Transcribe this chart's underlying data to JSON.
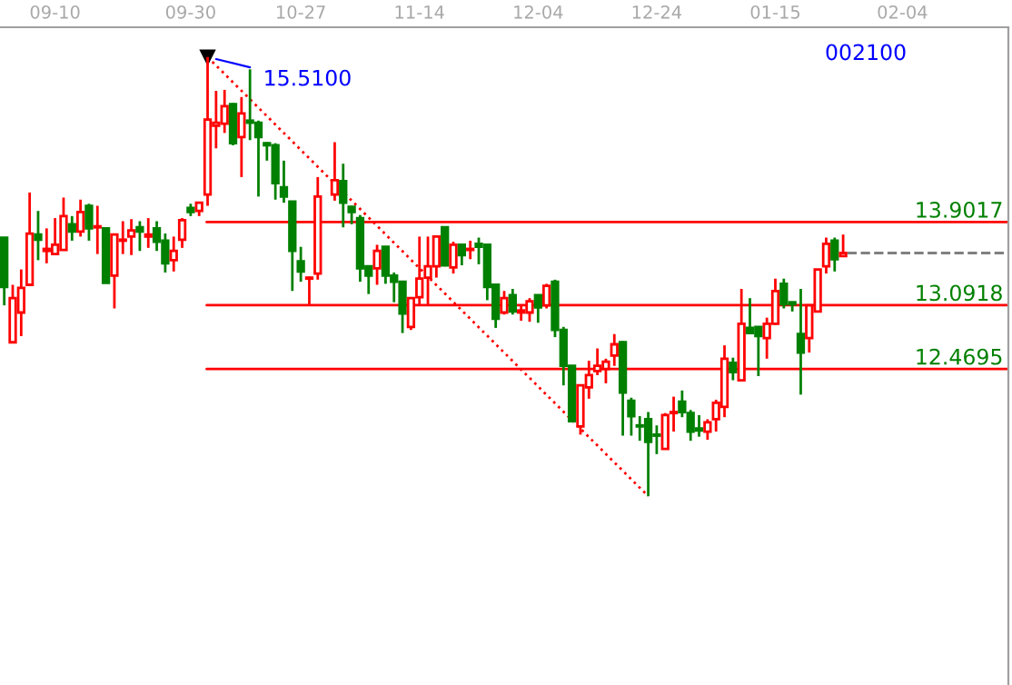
{
  "chart_data": {
    "type": "candlestick",
    "categories": [
      null,
      null,
      null,
      null,
      null,
      null,
      "09-10",
      null,
      null,
      null,
      null,
      null,
      null,
      null,
      null,
      null,
      null,
      null,
      null,
      null,
      null,
      null,
      "09-30",
      null,
      null,
      null,
      null,
      null,
      null,
      null,
      null,
      null,
      null,
      null,
      null,
      "10-27",
      null,
      null,
      null,
      null,
      null,
      null,
      null,
      null,
      null,
      null,
      null,
      null,
      null,
      "11-14",
      null,
      null,
      null,
      null,
      null,
      null,
      null,
      null,
      null,
      null,
      null,
      null,
      null,
      "12-04",
      null,
      null,
      null,
      null,
      null,
      null,
      null,
      null,
      null,
      null,
      null,
      null,
      null,
      "12-24",
      null,
      null,
      null,
      null,
      null,
      null,
      null,
      null,
      null,
      null,
      null,
      null,
      null,
      "01-15",
      null,
      null,
      null,
      null,
      null,
      null,
      null,
      null,
      null,
      null,
      null,
      null,
      null,
      null,
      "02-04",
      null,
      null,
      null,
      null,
      null,
      null,
      null,
      null,
      null,
      null,
      null,
      null
    ],
    "ohlc": [
      [
        13.75,
        13.75,
        13.09,
        13.27
      ],
      [
        12.73,
        13.29,
        12.73,
        13.16
      ],
      [
        13.02,
        13.44,
        12.79,
        13.26
      ],
      [
        13.29,
        14.19,
        13.29,
        13.79
      ],
      [
        13.78,
        14.01,
        13.53,
        13.73
      ],
      [
        13.62,
        13.84,
        13.5,
        13.64
      ],
      [
        13.59,
        13.94,
        13.59,
        13.68
      ],
      [
        13.63,
        14.14,
        13.63,
        13.96
      ],
      [
        13.88,
        13.96,
        13.72,
        13.81
      ],
      [
        13.81,
        14.12,
        13.76,
        14.0
      ],
      [
        14.06,
        14.08,
        13.72,
        13.84
      ],
      [
        13.85,
        14.06,
        13.59,
        13.86
      ],
      [
        13.84,
        13.84,
        13.31,
        13.31
      ],
      [
        13.38,
        13.79,
        13.06,
        13.78
      ],
      [
        13.72,
        13.91,
        13.59,
        13.73
      ],
      [
        13.76,
        13.93,
        13.58,
        13.82
      ],
      [
        13.85,
        13.91,
        13.62,
        13.81
      ],
      [
        13.76,
        13.94,
        13.65,
        13.78
      ],
      [
        13.84,
        13.91,
        13.62,
        13.71
      ],
      [
        13.72,
        13.79,
        13.41,
        13.5
      ],
      [
        13.53,
        13.76,
        13.42,
        13.62
      ],
      [
        13.73,
        13.94,
        13.65,
        13.92
      ],
      [
        14.04,
        14.08,
        13.96,
        14.0
      ],
      [
        14.01,
        14.1,
        13.96,
        14.09
      ],
      [
        14.17,
        15.51,
        14.06,
        14.9
      ],
      [
        14.84,
        15.18,
        14.62,
        14.87
      ],
      [
        14.86,
        15.19,
        14.77,
        15.03
      ],
      [
        15.05,
        15.06,
        14.65,
        14.67
      ],
      [
        14.73,
        15.12,
        14.34,
        14.96
      ],
      [
        14.89,
        15.39,
        14.7,
        14.87
      ],
      [
        14.87,
        14.89,
        14.15,
        14.73
      ],
      [
        14.67,
        14.68,
        14.5,
        14.65
      ],
      [
        14.65,
        14.67,
        14.12,
        14.28
      ],
      [
        14.24,
        14.5,
        14.09,
        14.15
      ],
      [
        14.1,
        14.1,
        13.23,
        13.62
      ],
      [
        13.52,
        13.66,
        13.32,
        13.42
      ],
      [
        13.35,
        13.37,
        13.1,
        13.36
      ],
      [
        13.4,
        14.34,
        13.34,
        14.15
      ],
      null,
      [
        14.17,
        14.68,
        14.11,
        14.31
      ],
      [
        14.3,
        14.47,
        13.85,
        14.09
      ],
      [
        14.05,
        14.06,
        13.88,
        14.0
      ],
      [
        13.94,
        13.97,
        13.32,
        13.45
      ],
      [
        13.47,
        13.48,
        13.2,
        13.38
      ],
      [
        13.45,
        13.68,
        13.29,
        13.62
      ],
      [
        13.66,
        13.66,
        13.3,
        13.38
      ],
      [
        13.38,
        13.41,
        13.12,
        13.32
      ],
      [
        13.32,
        13.32,
        12.82,
        13.01
      ],
      [
        12.88,
        13.17,
        12.85,
        13.16
      ],
      [
        13.17,
        13.76,
        13.09,
        13.35
      ],
      [
        13.36,
        13.76,
        13.09,
        13.47
      ],
      [
        13.47,
        13.76,
        13.36,
        13.76
      ],
      [
        13.85,
        13.85,
        13.47,
        13.48
      ],
      [
        13.46,
        13.71,
        13.4,
        13.68
      ],
      [
        13.68,
        13.68,
        13.48,
        13.58
      ],
      [
        13.63,
        13.72,
        13.54,
        13.64
      ],
      [
        13.69,
        13.75,
        13.49,
        13.66
      ],
      [
        13.68,
        13.68,
        13.14,
        13.27
      ],
      [
        13.29,
        13.29,
        12.87,
        12.96
      ],
      [
        13.02,
        13.23,
        13.0,
        13.16
      ],
      [
        13.19,
        13.25,
        13.0,
        13.03
      ],
      [
        13.02,
        13.09,
        12.94,
        13.04
      ],
      [
        13.02,
        13.16,
        12.93,
        13.13
      ],
      [
        13.19,
        13.19,
        12.92,
        13.07
      ],
      [
        13.09,
        13.3,
        13.06,
        13.28
      ],
      [
        13.32,
        13.34,
        12.78,
        12.85
      ],
      [
        12.85,
        12.88,
        12.31,
        12.5
      ],
      [
        12.5,
        12.5,
        11.95,
        11.96
      ],
      [
        11.91,
        12.31,
        11.83,
        12.31
      ],
      [
        12.29,
        12.55,
        12.18,
        12.41
      ],
      [
        12.45,
        12.67,
        12.41,
        12.5
      ],
      [
        12.47,
        12.57,
        12.33,
        12.54
      ],
      [
        12.6,
        12.81,
        12.5,
        12.71
      ],
      [
        12.73,
        12.74,
        11.82,
        12.24
      ],
      [
        12.16,
        12.19,
        11.82,
        12.01
      ],
      [
        11.92,
        12.01,
        11.77,
        11.91
      ],
      [
        11.98,
        12.05,
        11.23,
        11.76
      ],
      [
        11.83,
        11.92,
        11.64,
        11.82
      ],
      [
        11.69,
        12.04,
        11.69,
        12.02
      ],
      [
        12.04,
        12.2,
        11.86,
        12.05
      ],
      [
        12.15,
        12.26,
        12.0,
        12.05
      ],
      [
        12.04,
        12.07,
        11.77,
        11.86
      ],
      [
        11.89,
        12.02,
        11.81,
        11.87
      ],
      [
        11.86,
        11.98,
        11.78,
        11.95
      ],
      [
        11.98,
        12.17,
        11.86,
        12.14
      ],
      [
        12.1,
        12.7,
        12.0,
        12.57
      ],
      [
        12.53,
        12.58,
        12.36,
        12.44
      ],
      [
        12.36,
        13.25,
        12.35,
        12.91
      ],
      [
        12.87,
        13.16,
        12.81,
        12.82
      ],
      [
        12.88,
        12.88,
        12.4,
        12.79
      ],
      [
        12.77,
        12.97,
        12.57,
        12.91
      ],
      [
        12.91,
        13.35,
        12.9,
        13.23
      ],
      [
        13.3,
        13.35,
        13.06,
        13.1
      ],
      [
        13.12,
        13.12,
        13.03,
        13.1
      ],
      [
        12.81,
        13.25,
        12.22,
        12.63
      ],
      [
        12.77,
        13.09,
        12.63,
        13.09
      ],
      [
        13.03,
        13.44,
        13.03,
        13.44
      ],
      [
        13.47,
        13.75,
        13.4,
        13.69
      ],
      [
        13.72,
        13.75,
        13.42,
        13.54
      ],
      [
        13.57,
        13.78,
        13.56,
        13.6
      ],
      null,
      null,
      null,
      null,
      null,
      null,
      null,
      null,
      null,
      null,
      null,
      null,
      null,
      null,
      null,
      null,
      null,
      null,
      null
    ],
    "colors": [
      "#008000",
      "#ff0000",
      "#ff0000",
      "#ff0000",
      "#008000",
      "#ff0000",
      "#ff0000",
      "#ff0000",
      "#008000",
      "#ff0000",
      "#008000",
      "#ff0000",
      "#008000",
      "#ff0000",
      "#ff0000",
      "#ff0000",
      "#008000",
      "#ff0000",
      "#008000",
      "#008000",
      "#ff0000",
      "#ff0000",
      "#008000",
      "#ff0000",
      "#ff0000",
      "#ff0000",
      "#ff0000",
      "#008000",
      "#ff0000",
      "#008000",
      "#008000",
      "#008000",
      "#008000",
      "#008000",
      "#008000",
      "#008000",
      "#ff0000",
      "#ff0000",
      null,
      "#ff0000",
      "#008000",
      "#008000",
      "#008000",
      "#008000",
      "#ff0000",
      "#008000",
      "#008000",
      "#008000",
      "#ff0000",
      "#ff0000",
      "#ff0000",
      "#ff0000",
      "#008000",
      "#ff0000",
      "#008000",
      "#ff0000",
      "#008000",
      "#008000",
      "#008000",
      "#ff0000",
      "#008000",
      "#ff0000",
      "#ff0000",
      "#008000",
      "#ff0000",
      "#008000",
      "#008000",
      "#008000",
      "#ff0000",
      "#ff0000",
      "#ff0000",
      "#ff0000",
      "#ff0000",
      "#008000",
      "#008000",
      "#008000",
      "#008000",
      "#008000",
      "#ff0000",
      "#ff0000",
      "#008000",
      "#008000",
      "#008000",
      "#ff0000",
      "#ff0000",
      "#ff0000",
      "#008000",
      "#ff0000",
      "#008000",
      "#008000",
      "#ff0000",
      "#ff0000",
      "#008000",
      "#008000",
      "#008000",
      "#ff0000",
      "#ff0000",
      "#ff0000",
      "#008000",
      "#ff0000",
      null,
      null,
      null,
      null,
      null,
      null,
      null,
      null,
      null,
      null,
      null,
      null,
      null,
      null,
      null,
      null,
      null,
      null,
      null
    ],
    "series": [
      {
        "type": "line",
        "color": "#ff0000",
        "line_style": "dotted",
        "values": [
          null,
          null,
          null,
          null,
          null,
          null,
          null,
          null,
          null,
          null,
          null,
          null,
          null,
          null,
          null,
          null,
          null,
          null,
          null,
          null,
          null,
          null,
          null,
          null,
          15.51,
          null,
          null,
          null,
          null,
          null,
          null,
          null,
          null,
          null,
          null,
          null,
          null,
          null,
          null,
          null,
          null,
          null,
          null,
          null,
          null,
          null,
          null,
          null,
          null,
          null,
          null,
          null,
          null,
          null,
          null,
          null,
          null,
          null,
          null,
          null,
          null,
          null,
          null,
          null,
          null,
          null,
          null,
          null,
          null,
          null,
          null,
          null,
          null,
          null,
          null,
          null,
          11.23,
          null,
          null,
          null,
          null,
          null,
          null,
          null,
          null,
          null,
          null,
          null,
          null,
          null,
          null,
          null,
          null,
          null,
          null,
          null,
          null,
          null,
          null,
          null,
          null,
          null,
          null,
          null,
          null,
          null,
          null,
          null,
          null,
          null,
          null,
          null,
          null,
          null,
          null,
          null,
          null,
          null,
          null
        ]
      }
    ],
    "ylim": [
      9.39,
      15.8
    ],
    "tick_labels": "x",
    "ref_lines": [
      {
        "axis": "y",
        "value": 13.9017,
        "label": "13.9017",
        "color": "#ff0000"
      },
      {
        "axis": "y",
        "value": 13.0918,
        "label": "13.0918",
        "color": "#ff0000"
      },
      {
        "axis": "y",
        "value": 12.4695,
        "label": "12.4695",
        "color": "#ff0000"
      },
      {
        "axis": "y",
        "value": 13.6,
        "color": "#808080",
        "line_style": "dashed"
      }
    ],
    "annotations": [
      "15.5100",
      "002100"
    ],
    "grid": false
  }
}
